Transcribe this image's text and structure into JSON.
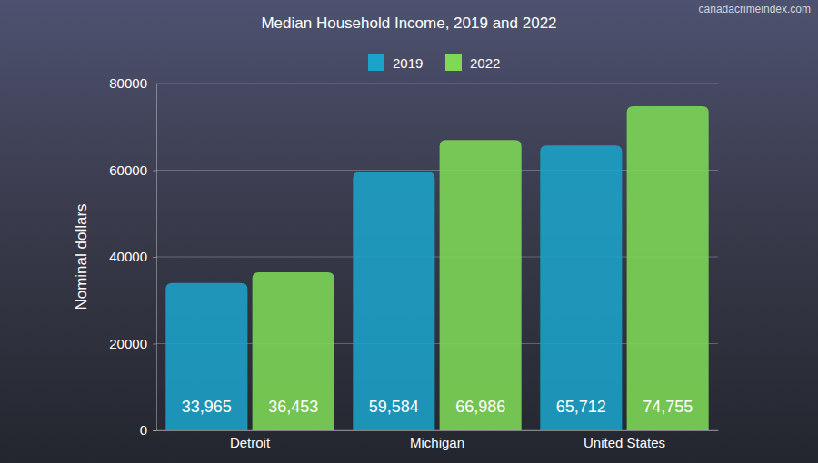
{
  "chart_data": {
    "type": "bar",
    "title": "Median Household Income, 2019 and 2022",
    "annotations": [
      "canadacrimeindex.com"
    ],
    "y_label": "Nominal dollars",
    "categories": [
      "Detroit",
      "Michigan",
      "United States"
    ],
    "series": [
      {
        "name": "2019",
        "color": "#1ba3c9",
        "values": [
          33965,
          59584,
          65712
        ],
        "value_labels": [
          "33,965",
          "59,584",
          "65,712"
        ]
      },
      {
        "name": "2022",
        "color": "#7ed957",
        "values": [
          36453,
          66986,
          74755
        ],
        "value_labels": [
          "36,453",
          "66,986",
          "74,755"
        ]
      }
    ],
    "ylim": [
      0,
      80000
    ],
    "yticks": [
      0,
      20000,
      40000,
      60000,
      80000
    ],
    "grid": true,
    "legend": "top",
    "data_labels": true
  }
}
